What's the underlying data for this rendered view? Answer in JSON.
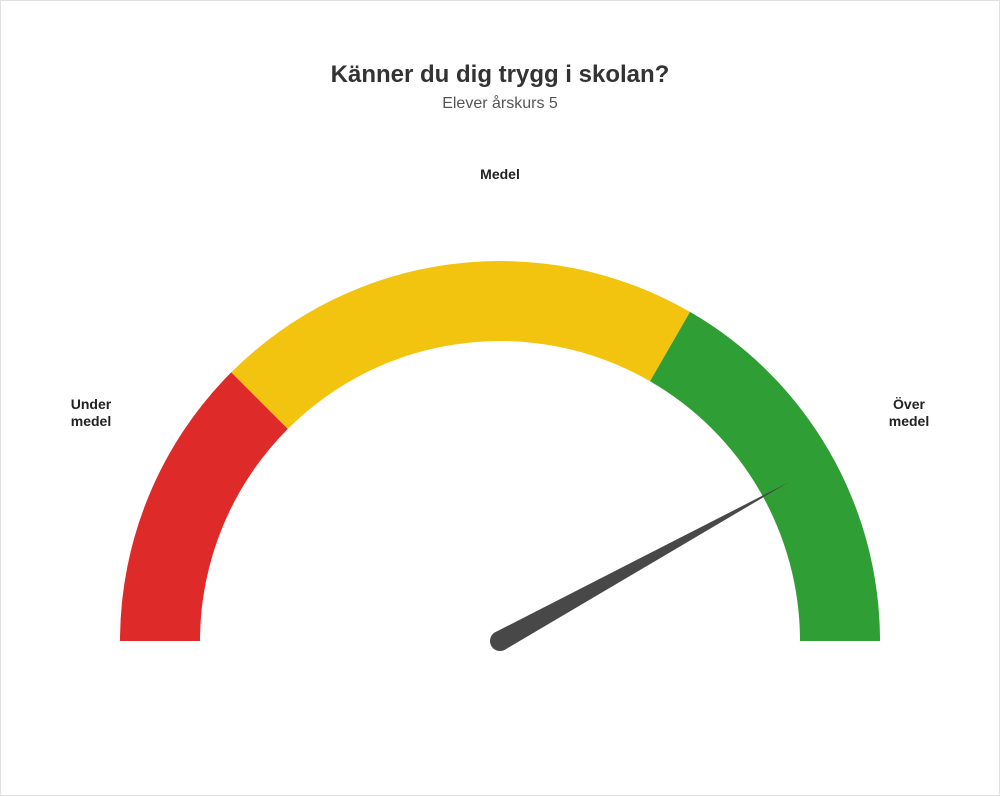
{
  "title": "Känner du dig trygg i skolan?",
  "subtitle": "Elever årskurs 5",
  "gauge": {
    "type": "gauge",
    "min": 0,
    "max": 100,
    "value": 84,
    "segments": [
      {
        "start": 0,
        "end": 25,
        "color": "#df2a2a",
        "label": "Under medel"
      },
      {
        "start": 25,
        "end": 66.67,
        "color": "#f3c40f",
        "label": "Medel"
      },
      {
        "start": 66.67,
        "end": 100,
        "color": "#2f9e35",
        "label": "Över medel"
      }
    ],
    "outer_radius": 380,
    "inner_radius": 300,
    "needle_color": "#484848",
    "needle_width_base": 20,
    "background_color": "#ffffff",
    "title_fontsize": 24,
    "subtitle_fontsize": 16,
    "label_fontsize": 14,
    "label_fontweight": "bold",
    "label_color": "#222222"
  },
  "labels": {
    "left_line1": "Under",
    "left_line2": "medel",
    "top": "Medel",
    "right_line1": "Över",
    "right_line2": "medel"
  }
}
